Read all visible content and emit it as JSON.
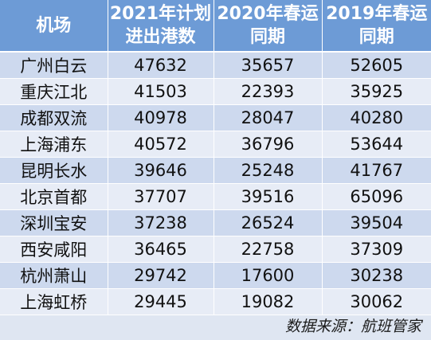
{
  "table": {
    "headers": [
      [
        "机场"
      ],
      [
        "2021年计划",
        "进出港数"
      ],
      [
        "2020年春运",
        "同期"
      ],
      [
        "2019年春运",
        "同期"
      ]
    ],
    "rows": [
      [
        "广州白云",
        "47632",
        "35657",
        "52605"
      ],
      [
        "重庆江北",
        "41503",
        "22393",
        "35925"
      ],
      [
        "成都双流",
        "40978",
        "28047",
        "40280"
      ],
      [
        "上海浦东",
        "40572",
        "36796",
        "53644"
      ],
      [
        "昆明长水",
        "39646",
        "25248",
        "41767"
      ],
      [
        "北京首都",
        "37707",
        "39516",
        "65096"
      ],
      [
        "深圳宝安",
        "37238",
        "26524",
        "39504"
      ],
      [
        "西安咸阳",
        "36465",
        "22758",
        "37309"
      ],
      [
        "杭州萧山",
        "29742",
        "17600",
        "30238"
      ],
      [
        "上海虹桥",
        "29445",
        "19082",
        "30062"
      ]
    ]
  },
  "footer": {
    "source": "数据来源：航班管家"
  },
  "colors": {
    "header_bg": "#6d9bd6",
    "row_dark": "#cdd9ee",
    "row_light": "#e7ecf6",
    "page_bg": "#dfe6f2"
  }
}
